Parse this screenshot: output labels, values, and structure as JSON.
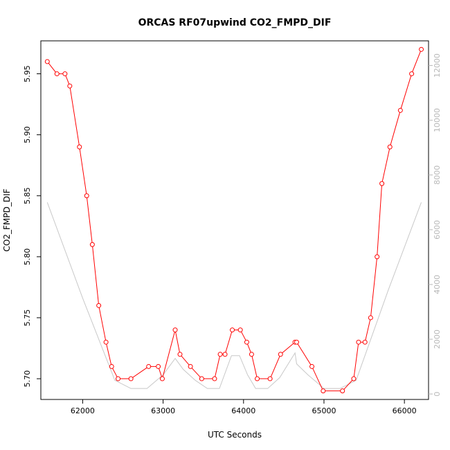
{
  "chart_data": {
    "type": "line",
    "title": "ORCAS RF07upwind CO2_FMPD_DIF",
    "xlabel": "UTC Seconds",
    "ylabel": "CO2_FMPD_DIF",
    "xlim": [
      61480,
      66300
    ],
    "ylim": [
      5.683,
      5.977
    ],
    "y2lim": [
      -200,
      12900
    ],
    "x_ticks": [
      62000,
      63000,
      64000,
      65000,
      66000
    ],
    "y_ticks": [
      5.7,
      5.75,
      5.8,
      5.85,
      5.9,
      5.95
    ],
    "y_tick_labels": [
      "5.70",
      "5.75",
      "5.80",
      "5.85",
      "5.90",
      "5.95"
    ],
    "y2_ticks": [
      0,
      2000,
      4000,
      6000,
      8000,
      10000,
      12000
    ],
    "grid": false,
    "colors": {
      "series": "#ff0000",
      "altitude": "#c8c8c8",
      "frame": "#000000",
      "right_axis": "#b8b8b8"
    },
    "series": [
      {
        "color": "#ff0000",
        "marker": "open-circle",
        "x": [
          61560,
          61680,
          61780,
          61840,
          61960,
          62050,
          62120,
          62200,
          62290,
          62360,
          62440,
          62600,
          62820,
          62940,
          62990,
          63150,
          63210,
          63340,
          63480,
          63640,
          63710,
          63770,
          63860,
          63960,
          64040,
          64100,
          64170,
          64330,
          64460,
          64640,
          64660,
          64850,
          64990,
          65230,
          65370,
          65430,
          65510,
          65580,
          65660,
          65720,
          65820,
          65950,
          66090,
          66210
        ],
        "y": [
          5.96,
          5.95,
          5.95,
          5.94,
          5.89,
          5.85,
          5.81,
          5.76,
          5.73,
          5.71,
          5.7,
          5.7,
          5.71,
          5.71,
          5.7,
          5.74,
          5.72,
          5.71,
          5.7,
          5.7,
          5.72,
          5.72,
          5.74,
          5.74,
          5.73,
          5.72,
          5.7,
          5.7,
          5.72,
          5.73,
          5.73,
          5.71,
          5.69,
          5.69,
          5.7,
          5.73,
          5.73,
          5.75,
          5.8,
          5.86,
          5.89,
          5.92,
          5.95,
          5.97
        ]
      },
      {
        "color": "#c8c8c8",
        "axis": "right",
        "x": [
          61560,
          62000,
          62400,
          62600,
          62800,
          63000,
          63150,
          63250,
          63400,
          63550,
          63700,
          63850,
          63950,
          64050,
          64150,
          64300,
          64450,
          64640,
          64660,
          64800,
          65000,
          65200,
          65400,
          65800,
          66210
        ],
        "y": [
          7000,
          3500,
          500,
          200,
          200,
          700,
          1300,
          900,
          500,
          200,
          200,
          1400,
          1400,
          700,
          200,
          200,
          600,
          1500,
          1100,
          700,
          200,
          200,
          500,
          3800,
          7000
        ]
      }
    ]
  }
}
